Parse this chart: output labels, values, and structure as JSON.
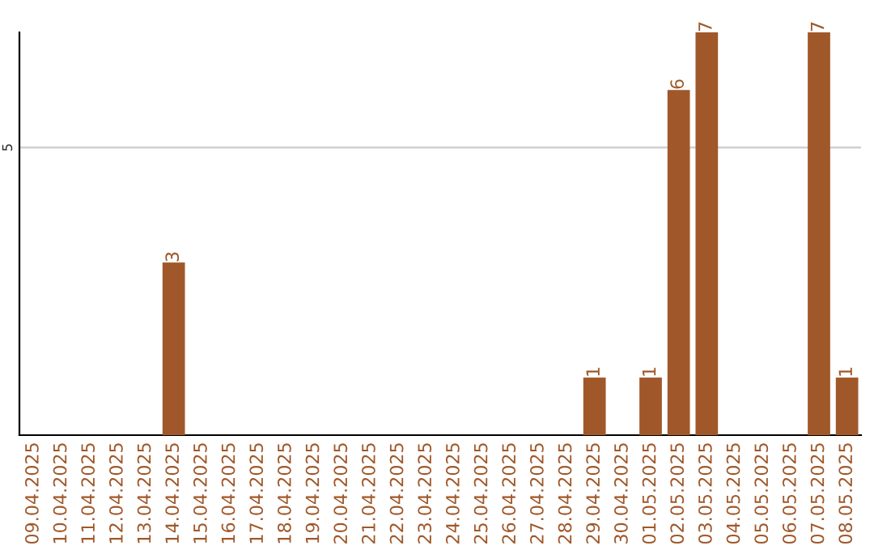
{
  "chart_data": {
    "type": "bar",
    "categories": [
      "09.04.2025",
      "10.04.2025",
      "11.04.2025",
      "12.04.2025",
      "13.04.2025",
      "14.04.2025",
      "15.04.2025",
      "16.04.2025",
      "17.04.2025",
      "18.04.2025",
      "19.04.2025",
      "20.04.2025",
      "21.04.2025",
      "22.04.2025",
      "23.04.2025",
      "24.04.2025",
      "25.04.2025",
      "26.04.2025",
      "27.04.2025",
      "28.04.2025",
      "29.04.2025",
      "30.04.2025",
      "01.05.2025",
      "02.05.2025",
      "03.05.2025",
      "04.05.2025",
      "05.05.2025",
      "06.05.2025",
      "07.05.2025",
      "08.05.2025"
    ],
    "values": [
      0,
      0,
      0,
      0,
      0,
      3,
      0,
      0,
      0,
      0,
      0,
      0,
      0,
      0,
      0,
      0,
      0,
      0,
      0,
      0,
      1,
      0,
      1,
      6,
      7,
      0,
      0,
      0,
      7,
      1
    ],
    "value_labels": [
      null,
      null,
      null,
      null,
      null,
      "3",
      null,
      null,
      null,
      null,
      null,
      null,
      null,
      null,
      null,
      null,
      null,
      null,
      null,
      null,
      "1",
      null,
      "1",
      "6",
      "7",
      null,
      null,
      null,
      "7",
      "1"
    ],
    "color": "#a0582a",
    "ylim": [
      0,
      7
    ],
    "yticks": [
      5
    ],
    "grid": "y",
    "legend": false
  }
}
